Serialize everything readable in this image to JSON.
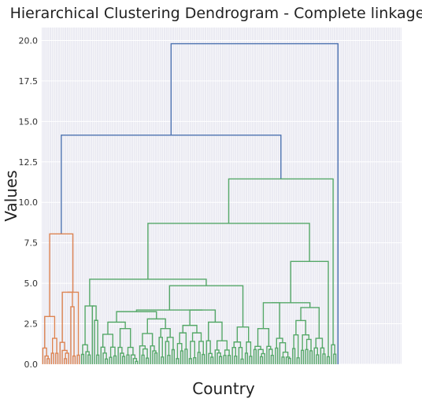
{
  "chart_data": {
    "type": "dendrogram",
    "title": "Hierarchical Clustering Dendrogram - Complete linkage",
    "xlabel": "Country",
    "ylabel": "Values",
    "ylim": [
      0,
      20.8
    ],
    "y_ticks": [
      "0.0",
      "2.5",
      "5.0",
      "7.5",
      "10.0",
      "12.5",
      "15.0",
      "17.5",
      "20.0"
    ],
    "grid": true,
    "leaf_count": 167,
    "colors": {
      "above_threshold": "#4c72b0",
      "cluster_1": "#dd8452",
      "cluster_2": "#55a868",
      "background": "#eaeaf2",
      "grid": "#ffffff"
    },
    "merges": [
      {
        "height": 19.8,
        "note": "root"
      },
      {
        "height": 14.15
      },
      {
        "height": 11.45
      },
      {
        "height": 8.7
      },
      {
        "height": 8.05
      },
      {
        "height": 6.35
      },
      {
        "height": 5.25
      },
      {
        "height": 4.85
      },
      {
        "height": 3.8
      },
      {
        "height": 3.6
      },
      {
        "height": 3.0
      },
      {
        "height": 2.6
      }
    ]
  }
}
